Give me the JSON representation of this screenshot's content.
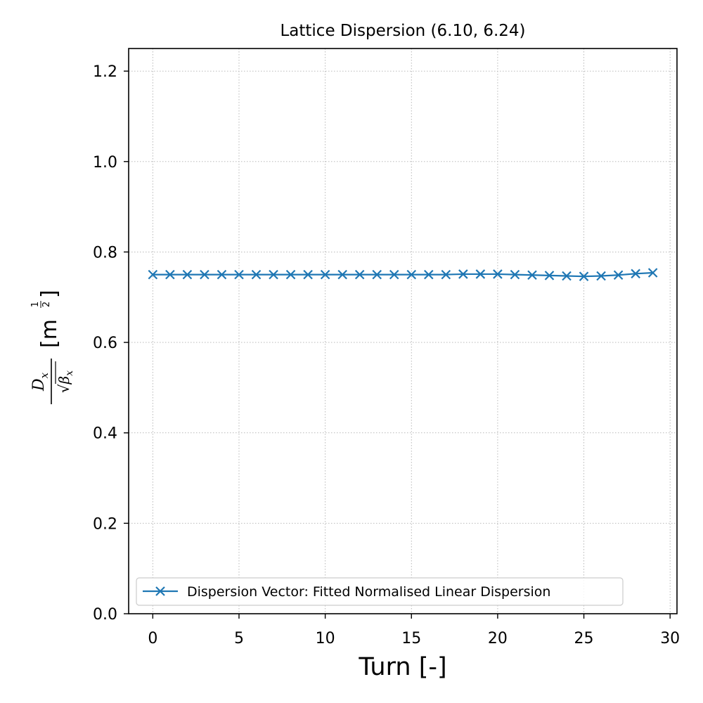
{
  "chart_data": {
    "type": "line",
    "title": "Lattice Dispersion (6.10, 6.24)",
    "xlabel": "Turn [-]",
    "ylabel": {
      "numerator": "D",
      "numerator_sub": "x",
      "radical": "√",
      "denominator": "β",
      "denominator_sub": "x",
      "unit_open": "[m",
      "exp_num": "1",
      "exp_den": "2",
      "unit_close": "]"
    },
    "xlim": [
      -1.4,
      30.4
    ],
    "ylim": [
      0,
      1.25
    ],
    "xticks": [
      0,
      5,
      10,
      15,
      20,
      25,
      30
    ],
    "yticks": [
      0.0,
      0.2,
      0.4,
      0.6,
      0.8,
      1.0,
      1.2
    ],
    "xtick_labels": [
      "0",
      "5",
      "10",
      "15",
      "20",
      "25",
      "30"
    ],
    "ytick_labels": [
      "0.0",
      "0.2",
      "0.4",
      "0.6",
      "0.8",
      "1.0",
      "1.2"
    ],
    "grid": true,
    "legend_position": "lower-left",
    "series": [
      {
        "name": "Dispersion Vector: Fitted Normalised Linear Dispersion",
        "color": "#1f77b4",
        "marker": "x",
        "x": [
          0,
          1,
          2,
          3,
          4,
          5,
          6,
          7,
          8,
          9,
          10,
          11,
          12,
          13,
          14,
          15,
          16,
          17,
          18,
          19,
          20,
          21,
          22,
          23,
          24,
          25,
          26,
          27,
          28,
          29
        ],
        "y": [
          0.75,
          0.75,
          0.75,
          0.75,
          0.75,
          0.75,
          0.75,
          0.75,
          0.75,
          0.75,
          0.75,
          0.75,
          0.75,
          0.75,
          0.75,
          0.75,
          0.75,
          0.75,
          0.751,
          0.751,
          0.751,
          0.75,
          0.749,
          0.748,
          0.747,
          0.746,
          0.747,
          0.749,
          0.752,
          0.754
        ]
      }
    ]
  }
}
